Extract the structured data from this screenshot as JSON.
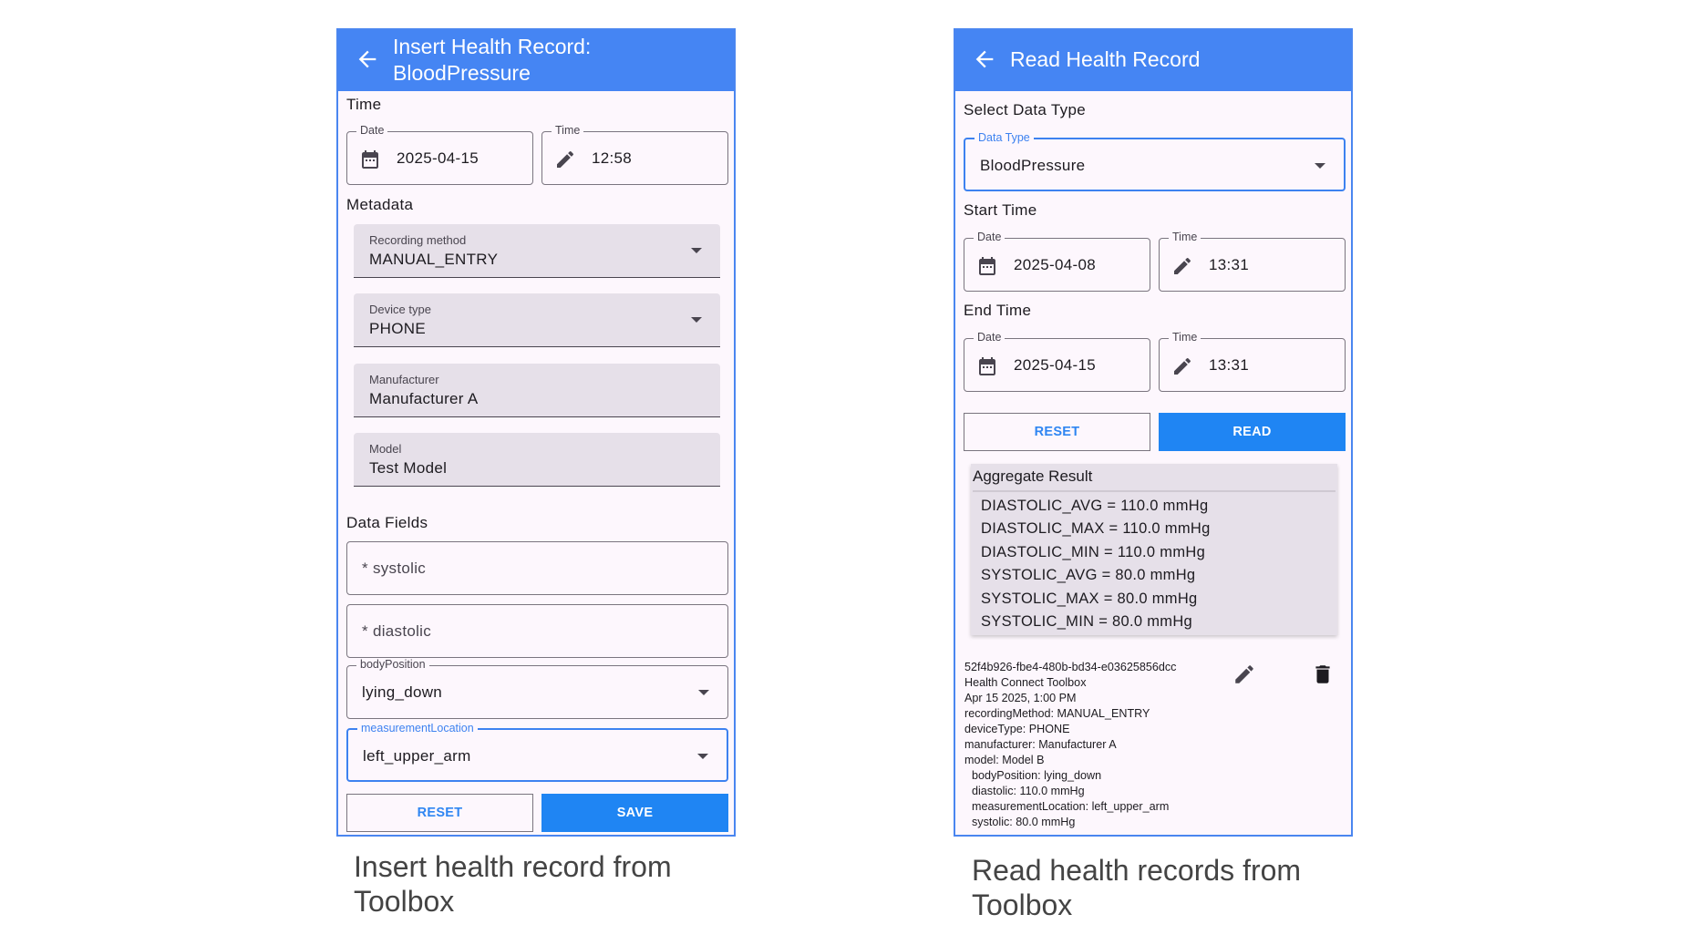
{
  "colors": {
    "header": "#4585f3",
    "primary_button": "#1f85f3",
    "panel_bg": "#fdf7fd",
    "field_bg": "#e6e0e9"
  },
  "insert": {
    "title_line1": "Insert Health Record:",
    "title_line2": "BloodPressure",
    "back_icon": "arrow-left-icon",
    "time_section": "Time",
    "date": {
      "label": "Date",
      "value": "2025-04-15",
      "icon": "calendar-icon"
    },
    "time": {
      "label": "Time",
      "value": "12:58",
      "icon": "pencil-icon"
    },
    "metadata_section": "Metadata",
    "recording_method": {
      "label": "Recording method",
      "value": "MANUAL_ENTRY"
    },
    "device_type": {
      "label": "Device type",
      "value": "PHONE"
    },
    "manufacturer": {
      "label": "Manufacturer",
      "value": "Manufacturer A"
    },
    "model": {
      "label": "Model",
      "value": "Test Model"
    },
    "data_fields_section": "Data Fields",
    "systolic_placeholder": "* systolic",
    "diastolic_placeholder": "* diastolic",
    "body_position": {
      "label": "bodyPosition",
      "value": "lying_down"
    },
    "measurement_location": {
      "label": "measurementLocation",
      "value": "left_upper_arm"
    },
    "reset": "RESET",
    "save": "SAVE",
    "caption": "Insert health record from Toolbox"
  },
  "read": {
    "title": "Read Health Record",
    "select_section": "Select Data Type",
    "data_type": {
      "label": "Data Type",
      "value": "BloodPressure"
    },
    "start_section": "Start Time",
    "start_date": {
      "label": "Date",
      "value": "2025-04-08"
    },
    "start_time": {
      "label": "Time",
      "value": "13:31"
    },
    "end_section": "End Time",
    "end_date": {
      "label": "Date",
      "value": "2025-04-15"
    },
    "end_time": {
      "label": "Time",
      "value": "13:31"
    },
    "reset": "RESET",
    "read": "READ",
    "aggregate": {
      "title": "Aggregate Result",
      "lines": [
        "DIASTOLIC_AVG = 110.0 mmHg",
        "DIASTOLIC_MAX = 110.0 mmHg",
        "DIASTOLIC_MIN = 110.0 mmHg",
        "SYSTOLIC_AVG = 80.0 mmHg",
        "SYSTOLIC_MAX = 80.0 mmHg",
        "SYSTOLIC_MIN = 80.0 mmHg"
      ]
    },
    "record": {
      "lines": [
        "52f4b926-fbe4-480b-bd34-e03625856dcc",
        "Health Connect Toolbox",
        "Apr 15 2025, 1:00 PM",
        "recordingMethod: MANUAL_ENTRY",
        "deviceType: PHONE",
        "manufacturer: Manufacturer A",
        "model: Model B",
        "  bodyPosition: lying_down",
        "  diastolic: 110.0 mmHg",
        "  measurementLocation: left_upper_arm",
        "  systolic: 80.0 mmHg"
      ],
      "edit_icon": "pencil-icon",
      "delete_icon": "trash-icon"
    },
    "caption": "Read health records from Toolbox"
  }
}
